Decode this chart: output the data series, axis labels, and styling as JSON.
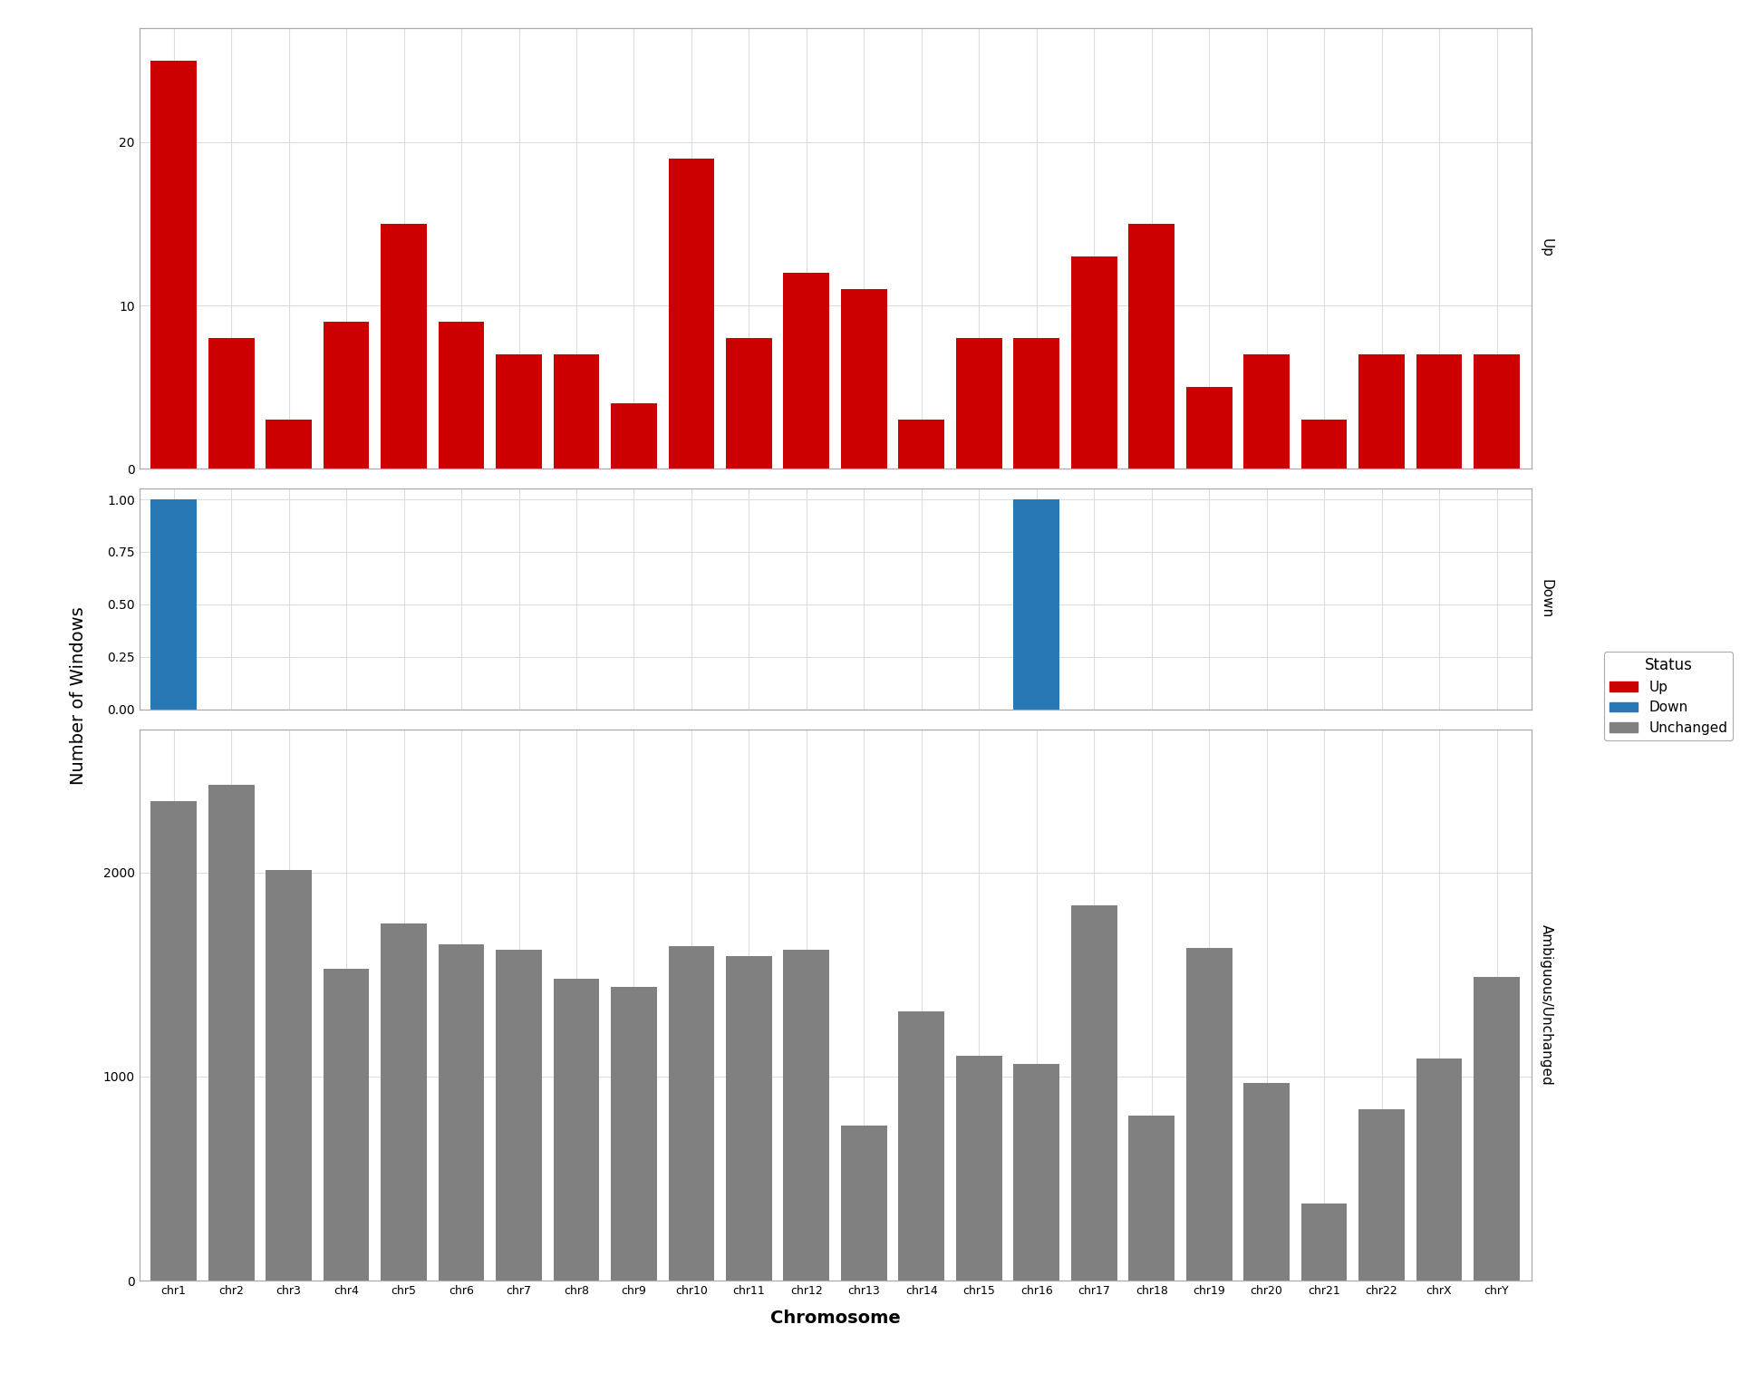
{
  "chromosomes": [
    "chr1",
    "chr2",
    "chr3",
    "chr4",
    "chr5",
    "chr6",
    "chr7",
    "chr8",
    "chr9",
    "chr10",
    "chr11",
    "chr12",
    "chr13",
    "chr14",
    "chr15",
    "chr16",
    "chr17",
    "chr18",
    "chr19",
    "chr20",
    "chr21",
    "chr22",
    "chrX",
    "chrY"
  ],
  "up_values": [
    25,
    8,
    3,
    9,
    15,
    9,
    7,
    7,
    4,
    19,
    8,
    12,
    11,
    3,
    8,
    8,
    13,
    15,
    5,
    7,
    3,
    7,
    7,
    7
  ],
  "down_values": [
    1,
    0,
    0,
    0,
    0,
    0,
    0,
    0,
    0,
    0,
    0,
    0,
    0,
    0,
    0,
    1,
    0,
    0,
    0,
    0,
    0,
    0,
    0,
    0
  ],
  "unchanged_values": [
    2350,
    2430,
    2010,
    1530,
    1750,
    1650,
    1620,
    1480,
    1440,
    1640,
    1590,
    1620,
    760,
    1320,
    1100,
    1060,
    1840,
    810,
    1630,
    970,
    380,
    840,
    1090,
    1490
  ],
  "up_color": "#cc0000",
  "down_color": "#2878b5",
  "unchanged_color": "#808080",
  "background_color": "#ffffff",
  "grid_color": "#dddddd",
  "panel_label_bg": "#d4d4d4",
  "up_ylim": [
    0,
    27
  ],
  "down_ylim": [
    0,
    1.05
  ],
  "unchanged_ylim": [
    0,
    2700
  ],
  "up_yticks": [
    0,
    10,
    20
  ],
  "down_yticks": [
    0.0,
    0.25,
    0.5,
    0.75,
    1.0
  ],
  "unchanged_yticks": [
    0,
    1000,
    2000
  ],
  "ylabel": "Number of Windows",
  "xlabel": "Chromosome",
  "title_up": "Up",
  "title_down": "Down",
  "title_unchanged": "Ambiguous/Unchanged",
  "legend_labels": [
    "Up",
    "Down",
    "Unchanged"
  ],
  "legend_colors": [
    "#cc0000",
    "#2878b5",
    "#808080"
  ],
  "legend_title": "Status"
}
